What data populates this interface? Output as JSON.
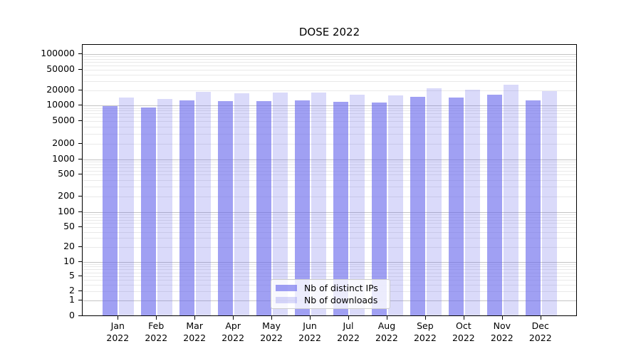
{
  "title": "DOSE 2022",
  "legend": {
    "items": [
      {
        "label": "Nb of distinct IPs",
        "style": "dark"
      },
      {
        "label": "Nb of downloads",
        "style": "light"
      }
    ]
  },
  "colors": {
    "bar_base_rgb": "102,102,235",
    "bar_dark_hex_on_white": "#a0a0f2",
    "bar_light_hex_on_white": "#d9d9f9",
    "grid_major": "#c4c4c4",
    "grid_minor": "#e9e9e9",
    "axis": "#000000",
    "text": "#000000"
  },
  "chart_data": {
    "type": "bar",
    "title": "DOSE 2022",
    "x_categories": [
      "Jan",
      "Feb",
      "Mar",
      "Apr",
      "May",
      "Jun",
      "Jul",
      "Aug",
      "Sep",
      "Oct",
      "Nov",
      "Dec"
    ],
    "x_year": "2022",
    "series": [
      {
        "name": "Nb of distinct IPs",
        "values": [
          9400,
          8800,
          12100,
          11500,
          11800,
          11900,
          11300,
          10900,
          14200,
          13900,
          15800,
          12100
        ]
      },
      {
        "name": "Nb of downloads",
        "values": [
          13800,
          13000,
          17700,
          16600,
          16900,
          17300,
          15400,
          15100,
          21000,
          19400,
          24600,
          18100
        ]
      }
    ],
    "yscale": "symlog",
    "ytick_values": [
      0,
      1,
      2,
      5,
      10,
      20,
      50,
      100,
      200,
      500,
      1000,
      2000,
      5000,
      10000,
      20000,
      50000,
      100000
    ],
    "ytick_labels": [
      "0",
      "1",
      "2",
      "5",
      "10",
      "20",
      "50",
      "100",
      "200",
      "500",
      "1000",
      "2000",
      "5000",
      "10000",
      "20000",
      "50000",
      "100000"
    ],
    "ylim": [
      0,
      200000
    ],
    "grid": "horizontal, major (powers of 10) darker + minor lighter",
    "legend_position": "lower center inside axes",
    "xlabel": "",
    "ylabel": ""
  }
}
